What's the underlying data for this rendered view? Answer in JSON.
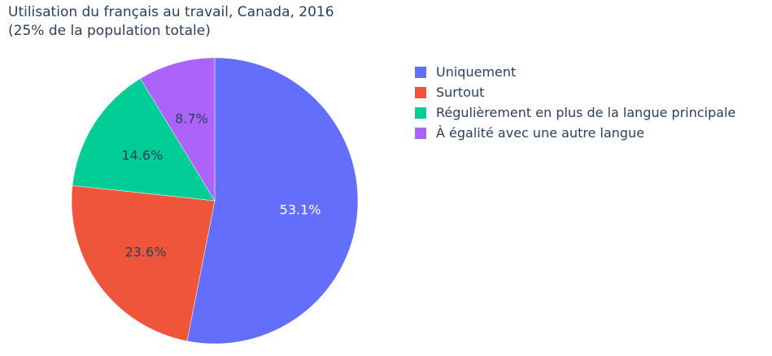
{
  "chart_data": {
    "type": "pie",
    "title": "Utilisation du français au travail, Canada, 2016",
    "subtitle": "(25% de la population totale)",
    "categories": [
      "Uniquement",
      "Surtout",
      "Régulièrement en plus de la langue principale",
      "À égalité avec une autre langue"
    ],
    "values": [
      53.1,
      23.6,
      14.6,
      8.7
    ],
    "labels": [
      "53.1%",
      "23.6%",
      "14.6%",
      "8.7%"
    ],
    "colors": [
      "#636efa",
      "#ef553b",
      "#00cc96",
      "#ab63fa"
    ],
    "label_colors": [
      "#ffffff",
      "#2a3f5f",
      "#2a3f5f",
      "#2a3f5f"
    ],
    "legend_position": "right",
    "direction": "clockwise",
    "start": "top"
  }
}
